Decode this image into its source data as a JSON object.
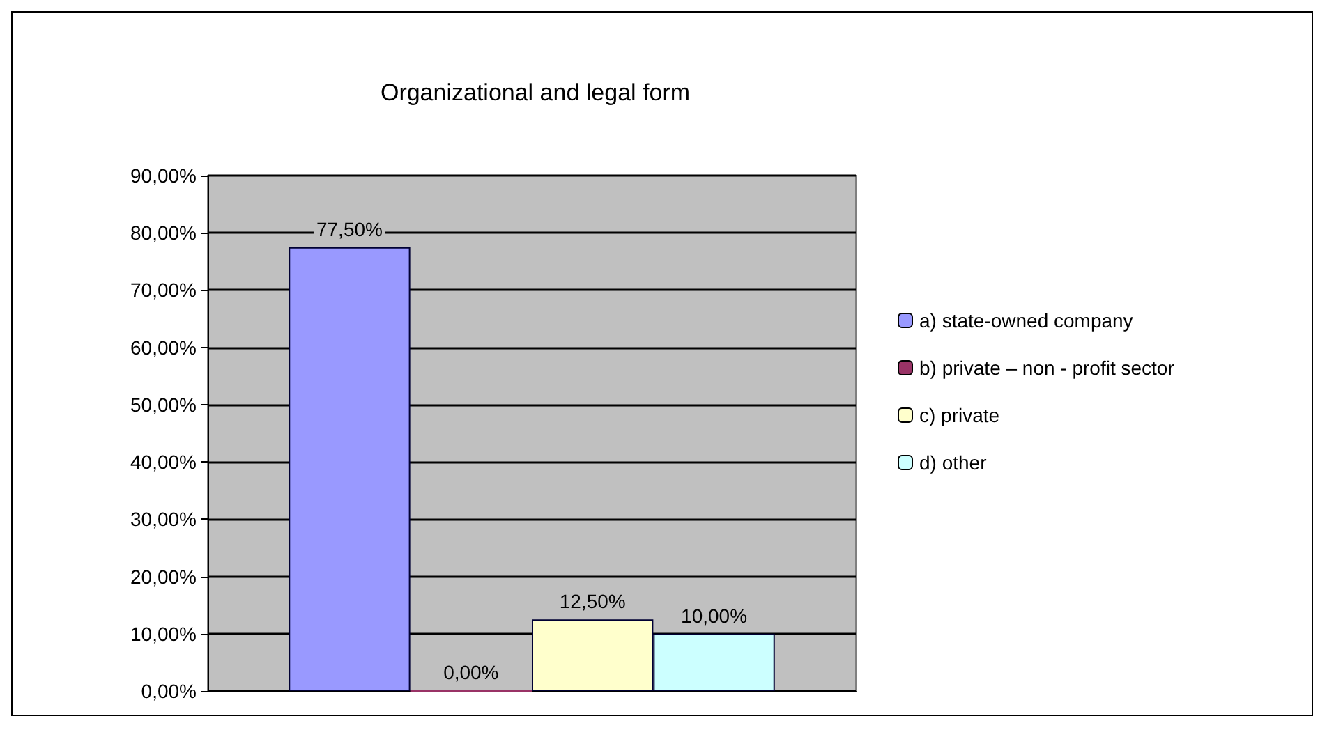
{
  "chart_data": {
    "type": "bar",
    "title": "Organizational and legal form",
    "categories": [
      null
    ],
    "series": [
      {
        "name": "a) state-owned company",
        "color": "#9999ff",
        "values": [
          77.5
        ],
        "value_labels": [
          "77,50%"
        ]
      },
      {
        "name": "b) private – non - profit sector",
        "color": "#993366",
        "values": [
          0
        ],
        "value_labels": [
          "0,00%"
        ]
      },
      {
        "name": "c) private",
        "color": "#ffffcc",
        "values": [
          12.5
        ],
        "value_labels": [
          "12,50%"
        ]
      },
      {
        "name": "d) other",
        "color": "#ccffff",
        "values": [
          10
        ],
        "value_labels": [
          "10,00%"
        ]
      }
    ],
    "ylim": [
      0,
      90
    ],
    "yticks": [
      {
        "value": 0,
        "label": "0,00%"
      },
      {
        "value": 10,
        "label": "10,00%"
      },
      {
        "value": 20,
        "label": "20,00%"
      },
      {
        "value": 30,
        "label": "30,00%"
      },
      {
        "value": 40,
        "label": "40,00%"
      },
      {
        "value": 50,
        "label": "50,00%"
      },
      {
        "value": 60,
        "label": "60,00%"
      },
      {
        "value": 70,
        "label": "70,00%"
      },
      {
        "value": 80,
        "label": "80,00%"
      },
      {
        "value": 90,
        "label": "90,00%"
      }
    ],
    "grid": "y",
    "legend": "right"
  }
}
